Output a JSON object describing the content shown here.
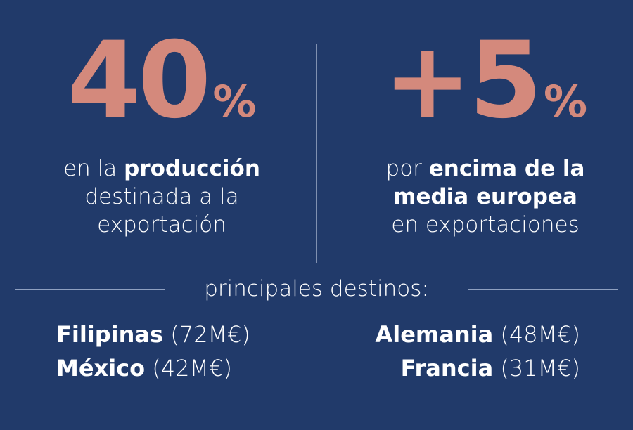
{
  "stats": [
    {
      "number": "40",
      "unit": "%",
      "lines": [
        [
          {
            "text": "en la",
            "bold": false
          },
          {
            "text": "producción",
            "bold": true
          }
        ],
        [
          {
            "text": "destinada a la",
            "bold": false
          }
        ],
        [
          {
            "text": "exportación",
            "bold": false
          }
        ]
      ]
    },
    {
      "number": "+5",
      "unit": "%",
      "lines": [
        [
          {
            "text": "por",
            "bold": false
          },
          {
            "text": "encima de la",
            "bold": true
          }
        ],
        [
          {
            "text": "media europea",
            "bold": true
          }
        ],
        [
          {
            "text": "en exportaciones",
            "bold": false
          }
        ]
      ]
    }
  ],
  "destinations": {
    "heading": "principales destinos:",
    "items": [
      {
        "name": "Filipinas",
        "amount": "(72M€)"
      },
      {
        "name": "México",
        "amount": "(42M€)"
      },
      {
        "name": "Alemania",
        "amount": "(48M€)"
      },
      {
        "name": "Francia",
        "amount": "(31M€)"
      }
    ]
  }
}
